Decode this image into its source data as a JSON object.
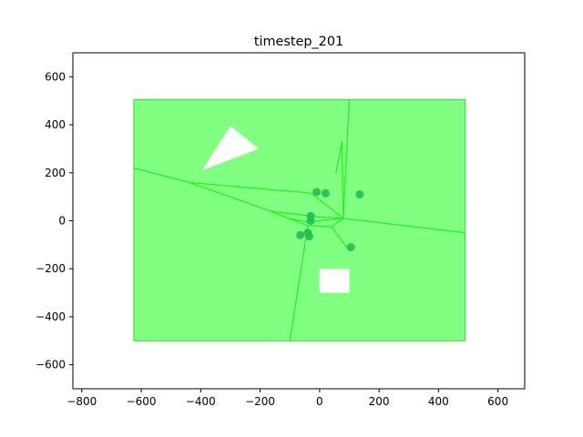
{
  "chart_data": {
    "type": "scatter",
    "title": "timestep_201",
    "xlabel": "",
    "ylabel": "",
    "xlim": [
      -830,
      690
    ],
    "ylim": [
      -700,
      700
    ],
    "xticks": [
      -800,
      -600,
      -400,
      -200,
      0,
      200,
      400,
      600
    ],
    "yticks": [
      -600,
      -400,
      -200,
      0,
      200,
      400,
      600
    ],
    "xtick_labels": [
      "−800",
      "−600",
      "−400",
      "−200",
      "0",
      "200",
      "400",
      "600"
    ],
    "ytick_labels": [
      "−600",
      "−400",
      "−200",
      "0",
      "200",
      "400",
      "600"
    ],
    "grid": false,
    "colors": {
      "region_fill": "#80ff80",
      "region_edge": "#33dd33",
      "lines": "#22ee22",
      "points": "#22bb55",
      "obstacle": "#ffffff"
    },
    "region": {
      "x": [
        -625,
        490
      ],
      "y": [
        -500,
        505
      ]
    },
    "obstacles": [
      {
        "shape": "triangle",
        "points": [
          [
            -395,
            210
          ],
          [
            -300,
            395
          ],
          [
            -205,
            300
          ]
        ]
      },
      {
        "shape": "rectangle",
        "x": [
          0,
          100
        ],
        "y": [
          -300,
          -200
        ]
      }
    ],
    "points": [
      {
        "x": -10,
        "y": 120
      },
      {
        "x": 20,
        "y": 115
      },
      {
        "x": 135,
        "y": 110
      },
      {
        "x": -30,
        "y": 20
      },
      {
        "x": -30,
        "y": 0
      },
      {
        "x": -65,
        "y": -60
      },
      {
        "x": -40,
        "y": -50
      },
      {
        "x": -35,
        "y": -65
      },
      {
        "x": 105,
        "y": -110
      }
    ],
    "lines": [
      [
        [
          -625,
          220
        ],
        [
          -440,
          160
        ],
        [
          -30,
          115
        ],
        [
          80,
          10
        ]
      ],
      [
        [
          -440,
          160
        ],
        [
          -165,
          40
        ],
        [
          -20,
          18
        ],
        [
          80,
          10
        ]
      ],
      [
        [
          -165,
          40
        ],
        [
          -105,
          10
        ],
        [
          -40,
          -5
        ],
        [
          80,
          10
        ]
      ],
      [
        [
          -105,
          10
        ],
        [
          -40,
          -20
        ],
        [
          40,
          -25
        ],
        [
          80,
          10
        ]
      ],
      [
        [
          80,
          10
        ],
        [
          490,
          -50
        ]
      ],
      [
        [
          80,
          10
        ],
        [
          100,
          505
        ]
      ],
      [
        [
          80,
          10
        ],
        [
          75,
          330
        ],
        [
          55,
          200
        ]
      ],
      [
        [
          -40,
          -20
        ],
        [
          -55,
          -145
        ],
        [
          -100,
          -500
        ]
      ],
      [
        [
          40,
          -25
        ],
        [
          100,
          -125
        ]
      ]
    ]
  }
}
